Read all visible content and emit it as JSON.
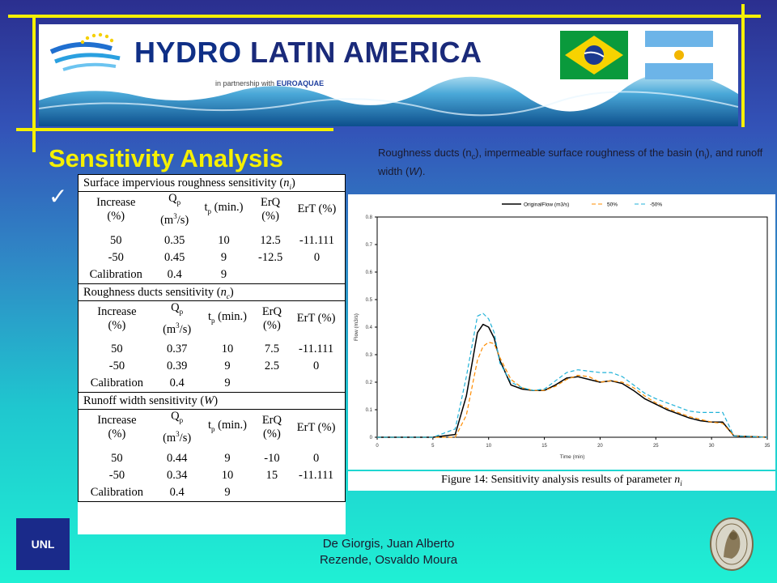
{
  "banner": {
    "logo_text_1": "HYDRO",
    "logo_text_2": "LATIN AMERICA",
    "partnership_prefix": "in partnership with",
    "partner_name": "EUROAQUAE",
    "flags": [
      "brazil-flag",
      "argentina-flag"
    ]
  },
  "slide": {
    "title": "Sensitivity Analysis",
    "check_symbol": "✓",
    "intro_parts": [
      "Roughness ducts (n",
      "c",
      "), impermeable surface roughness of the basin (n",
      "i",
      "), and runoff width (",
      "W",
      ")."
    ]
  },
  "tables": {
    "columns": [
      {
        "line1": "Increase",
        "line2": "(%)"
      },
      {
        "line1": "Q",
        "sub1": "p",
        "line2": "(m",
        "sup2": "3",
        "line2b": "/s)"
      },
      {
        "line1": "t",
        "sub1": "p",
        "line1b": " (min.)",
        "line2": ""
      },
      {
        "line1": "ErQ",
        "line2": "(%)"
      },
      {
        "line1": "ErT (%)",
        "line2": ""
      }
    ],
    "sections": [
      {
        "title": "Surface impervious roughness sensitivity (",
        "param": "n",
        "param_sub": "i",
        "close": ")",
        "rows": [
          [
            "50",
            "0.35",
            "10",
            "12.5",
            "-11.111"
          ],
          [
            "-50",
            "0.45",
            "9",
            "-12.5",
            "0"
          ],
          [
            "Calibration",
            "0.4",
            "9",
            "",
            ""
          ]
        ]
      },
      {
        "title": "Roughness ducts sensitivity (",
        "param": "n",
        "param_sub": "c",
        "close": ")",
        "rows": [
          [
            "50",
            "0.37",
            "10",
            "7.5",
            "-11.111"
          ],
          [
            "-50",
            "0.39",
            "9",
            "2.5",
            "0"
          ],
          [
            "Calibration",
            "0.4",
            "9",
            "",
            ""
          ]
        ]
      },
      {
        "title": "Runoff width sensitivity (",
        "param": "W",
        "param_sub": "",
        "close": ")",
        "rows": [
          [
            "50",
            "0.44",
            "9",
            "-10",
            "0"
          ],
          [
            "-50",
            "0.34",
            "10",
            "15",
            "-11.111"
          ],
          [
            "Calibration",
            "0.4",
            "9",
            "",
            ""
          ]
        ]
      }
    ]
  },
  "figure": {
    "caption": "Figure 14: Sensitivity analysis results of parameter ",
    "caption_param": "n",
    "caption_param_sub": "i"
  },
  "chart_data": {
    "type": "line",
    "title": "",
    "xlabel": "Time (min)",
    "ylabel": "Flow (m3/s)",
    "xlim": [
      0,
      35
    ],
    "ylim": [
      0,
      0.8
    ],
    "xticks": [
      "0",
      "5",
      "10",
      "15",
      "20",
      "25",
      "30",
      "35"
    ],
    "yticks": [
      "0",
      "0.1",
      "0.2",
      "0.3",
      "0.4",
      "0.5",
      "0.6",
      "0.7",
      "0.8"
    ],
    "legend_position": "top",
    "x": [
      0,
      5,
      7,
      8,
      9,
      9.5,
      10,
      10.5,
      11,
      12,
      13,
      14,
      15,
      16,
      17,
      18,
      19,
      20,
      21,
      22,
      23,
      24,
      25,
      26,
      27,
      28,
      29,
      30,
      31,
      32,
      35
    ],
    "series": [
      {
        "name": "OriginalFlow (m3/s)",
        "color": "#000000",
        "dash": "",
        "values": [
          0,
          0,
          0.01,
          0.15,
          0.38,
          0.41,
          0.4,
          0.36,
          0.28,
          0.19,
          0.175,
          0.17,
          0.17,
          0.19,
          0.215,
          0.22,
          0.21,
          0.2,
          0.205,
          0.195,
          0.17,
          0.14,
          0.12,
          0.1,
          0.085,
          0.07,
          0.06,
          0.055,
          0.055,
          0.005,
          0
        ]
      },
      {
        "name": "50%",
        "color": "#ff8c00",
        "dash": "5,3",
        "values": [
          0,
          0,
          0,
          0.08,
          0.28,
          0.33,
          0.345,
          0.34,
          0.29,
          0.21,
          0.18,
          0.17,
          0.17,
          0.185,
          0.21,
          0.225,
          0.22,
          0.2,
          0.205,
          0.2,
          0.18,
          0.15,
          0.125,
          0.105,
          0.09,
          0.075,
          0.065,
          0.055,
          0.05,
          0.005,
          0
        ]
      },
      {
        "name": "-50%",
        "color": "#20b2d8",
        "dash": "5,3",
        "values": [
          0,
          0,
          0.03,
          0.22,
          0.44,
          0.45,
          0.43,
          0.38,
          0.27,
          0.2,
          0.18,
          0.17,
          0.175,
          0.205,
          0.235,
          0.245,
          0.24,
          0.235,
          0.235,
          0.22,
          0.19,
          0.16,
          0.14,
          0.125,
          0.11,
          0.095,
          0.09,
          0.09,
          0.09,
          0.005,
          0
        ]
      }
    ]
  },
  "footer": {
    "author_line_1": "De Giorgis, Juan Alberto",
    "author_line_2": "Rezende, Osvaldo Moura",
    "left_logo_text": "UNL"
  }
}
